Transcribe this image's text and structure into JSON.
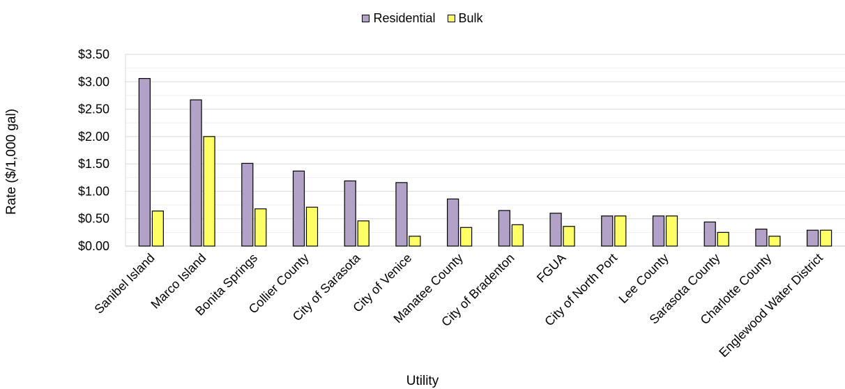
{
  "chart_data": {
    "type": "bar",
    "title": "",
    "xlabel": "Utility",
    "ylabel": "Rate ($/1,000 gal)",
    "ylim": [
      0,
      3.5
    ],
    "yticks": [
      "$0.00",
      "$0.50",
      "$1.00",
      "$1.50",
      "$2.00",
      "$2.50",
      "$3.00",
      "$3.50"
    ],
    "grid": true,
    "legend_position": "top-center",
    "categories": [
      "Sanibel Island",
      "Marco Island",
      "Bonita Springs",
      "Collier County",
      "City of Sarasota",
      "City of Venice",
      "Manatee County",
      "City of Bradenton",
      "FGUA",
      "City of North Port",
      "Lee County",
      "Sarasota County",
      "Charlotte County",
      "Englewood Water District"
    ],
    "series": [
      {
        "name": "Residential",
        "color": "#b3a2c7",
        "values": [
          3.06,
          2.67,
          1.51,
          1.37,
          1.19,
          1.16,
          0.86,
          0.65,
          0.6,
          0.55,
          0.55,
          0.44,
          0.31,
          0.29
        ]
      },
      {
        "name": "Bulk",
        "color": "#ffff66",
        "values": [
          0.64,
          2.0,
          0.68,
          0.71,
          0.46,
          0.18,
          0.34,
          0.39,
          0.36,
          0.55,
          0.55,
          0.25,
          0.18,
          0.29
        ]
      }
    ]
  }
}
